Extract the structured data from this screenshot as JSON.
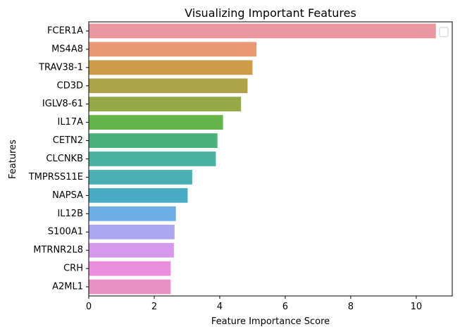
{
  "chart_data": {
    "type": "bar",
    "orientation": "horizontal",
    "title": "Visualizing Important Features",
    "xlabel": "Feature Importance Score",
    "ylabel": "Features",
    "xlim": [
      0,
      11.1
    ],
    "xticks": [
      0,
      2,
      4,
      6,
      8,
      10
    ],
    "grid": false,
    "legend": "top-right",
    "categories": [
      "FCER1A",
      "MS4A8",
      "TRAV38-1",
      "CD3D",
      "IGLV8-61",
      "IL17A",
      "CETN2",
      "CLCNKB",
      "TMPRSS11E",
      "NAPSA",
      "IL12B",
      "S100A1",
      "MTRNR2L8",
      "CRH",
      "A2ML1"
    ],
    "values": [
      10.6,
      5.12,
      5.0,
      4.85,
      4.65,
      4.1,
      3.93,
      3.88,
      3.16,
      3.02,
      2.66,
      2.62,
      2.6,
      2.5,
      2.5
    ],
    "colors": [
      "#ea97a2",
      "#e99874",
      "#cc9c4b",
      "#ada346",
      "#94a845",
      "#63b449",
      "#49b17b",
      "#4ab09f",
      "#4ab0b2",
      "#49acc4",
      "#6caee5",
      "#aba7ef",
      "#d598eb",
      "#ea8fe0",
      "#e991c4"
    ]
  }
}
